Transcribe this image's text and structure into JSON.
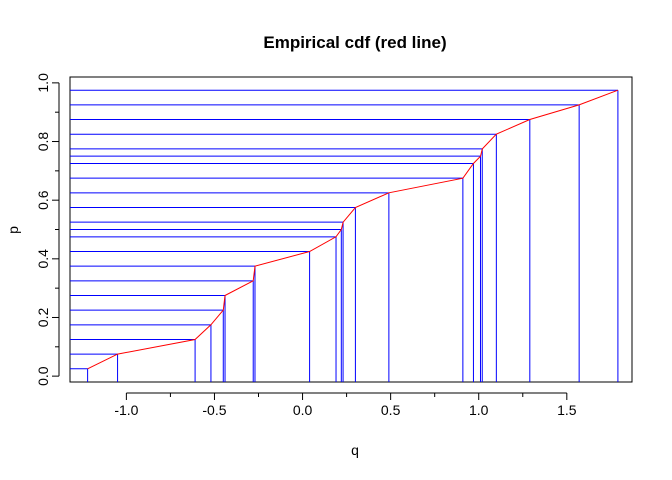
{
  "chart_data": {
    "type": "line",
    "title": "Empirical cdf (red line)",
    "xlabel": "q",
    "ylabel": "p",
    "xlim": [
      -1.32,
      1.87
    ],
    "ylim": [
      -0.02,
      1.02
    ],
    "xticks": [
      -1.0,
      -0.5,
      0.0,
      0.5,
      1.0,
      1.5
    ],
    "xtick_labels": [
      "-1.0",
      "-0.5",
      "0.0",
      "0.5",
      "1.0",
      "1.5"
    ],
    "yticks": [
      0.0,
      0.2,
      0.4,
      0.6,
      0.8,
      1.0
    ],
    "ytick_labels": [
      "0.0",
      "0.2",
      "0.4",
      "0.6",
      "0.8",
      "1.0"
    ],
    "grid": false,
    "colors": {
      "cdf_line": "#ff0000",
      "guides": "#0000ff",
      "frame": "#000000"
    },
    "series": [
      {
        "x": [
          -1.22,
          -1.05,
          -0.61,
          -0.52,
          -0.45,
          -0.44,
          -0.28,
          -0.27,
          0.04,
          0.19,
          0.22,
          0.23,
          0.3,
          0.49,
          0.91,
          0.97,
          1.01,
          1.02,
          1.1,
          1.29,
          1.57,
          1.79
        ],
        "y": [
          0.025,
          0.075,
          0.125,
          0.175,
          0.225,
          0.275,
          0.325,
          0.375,
          0.425,
          0.475,
          0.5,
          0.525,
          0.575,
          0.625,
          0.675,
          0.725,
          0.75,
          0.775,
          0.825,
          0.875,
          0.925,
          0.975
        ]
      }
    ]
  }
}
